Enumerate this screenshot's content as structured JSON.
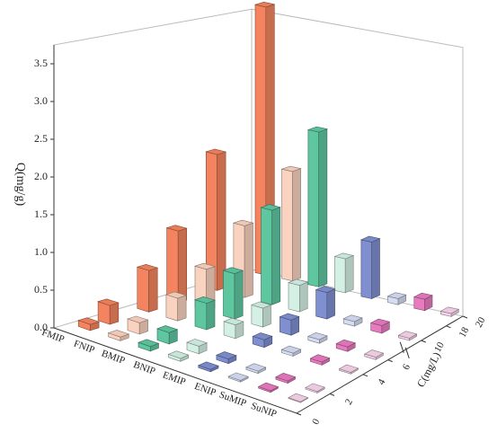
{
  "chart_data": {
    "type": "bar3d",
    "zlabel": "Q(mg/g)",
    "xlabel": "C(mg/L)",
    "categories": [
      "FMIP",
      "FNIP",
      "BMIP",
      "BNIP",
      "EMIP",
      "ENIP",
      "SuMIP",
      "SuNIP"
    ],
    "x": [
      1,
      2,
      4,
      6,
      10,
      20
    ],
    "xticks": [
      0,
      2,
      4,
      6,
      10,
      18,
      20
    ],
    "zlim": [
      0,
      3.75
    ],
    "zticks": [
      {
        "value": 0,
        "label": "0.0"
      },
      0.5,
      {
        "value": 1,
        "label": "1.0"
      },
      1.5,
      {
        "value": 2,
        "label": "2.0"
      },
      2.5,
      {
        "value": 3,
        "label": "3.0"
      },
      3.5
    ],
    "series": [
      {
        "name": "FMIP",
        "color": "#f4845f",
        "values": [
          0.08,
          0.25,
          0.55,
          0.95,
          1.8,
          3.55
        ]
      },
      {
        "name": "FNIP",
        "color": "#f9d3c0",
        "values": [
          0.05,
          0.15,
          0.3,
          0.55,
          0.95,
          1.45
        ]
      },
      {
        "name": "BMIP",
        "color": "#5ec7a0",
        "values": [
          0.06,
          0.15,
          0.35,
          0.6,
          1.25,
          2.05
        ]
      },
      {
        "name": "BNIP",
        "color": "#d4f0e4",
        "values": [
          0.04,
          0.1,
          0.18,
          0.25,
          0.35,
          0.45
        ]
      },
      {
        "name": "EMIP",
        "color": "#7f8fd0",
        "values": [
          0.03,
          0.06,
          0.1,
          0.2,
          0.35,
          0.75
        ]
      },
      {
        "name": "ENIP",
        "color": "#d6dcf2",
        "values": [
          0.02,
          0.03,
          0.04,
          0.05,
          0.06,
          0.08
        ]
      },
      {
        "name": "SuMIP",
        "color": "#e87bc0",
        "values": [
          0.02,
          0.03,
          0.04,
          0.06,
          0.1,
          0.15
        ]
      },
      {
        "name": "SuNIP",
        "color": "#f6d5ea",
        "values": [
          0.01,
          0.02,
          0.02,
          0.03,
          0.03,
          0.04
        ]
      }
    ]
  }
}
